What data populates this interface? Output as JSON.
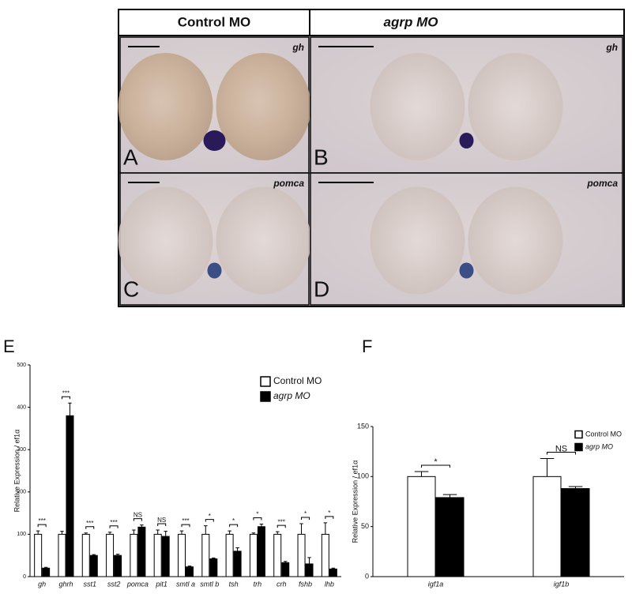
{
  "header": {
    "left": "Control MO",
    "right": "agrp MO"
  },
  "images": [
    {
      "letter": "A",
      "gene": "gh"
    },
    {
      "letter": "B",
      "gene": "gh"
    },
    {
      "letter": "C",
      "gene": "pomca"
    },
    {
      "letter": "D",
      "gene": "pomca"
    }
  ],
  "chart_data": [
    {
      "type": "bar",
      "panel_label": "E",
      "ylabel": "Relative Expression / ef1α",
      "categories": [
        "gh",
        "ghrh",
        "sst1",
        "sst2",
        "pomca",
        "pit1",
        "smtl a",
        "smtl b",
        "tsh",
        "trh",
        "crh",
        "fshb",
        "lhb"
      ],
      "series": [
        {
          "name": "Control MO",
          "color": "#ffffff",
          "values": [
            100,
            100,
            100,
            100,
            100,
            100,
            100,
            100,
            100,
            100,
            100,
            100,
            100
          ],
          "errors": [
            8,
            7,
            3,
            5,
            10,
            10,
            8,
            20,
            8,
            3,
            6,
            25,
            27
          ]
        },
        {
          "name": "agrp MO",
          "color": "#000000",
          "values": [
            20,
            380,
            50,
            50,
            117,
            95,
            23,
            42,
            60,
            118,
            33,
            30,
            18
          ],
          "errors": [
            2,
            30,
            2,
            3,
            5,
            12,
            2,
            2,
            8,
            6,
            3,
            15,
            2
          ]
        }
      ],
      "significance": [
        "***",
        "***",
        "***",
        "***",
        "NS",
        "NS",
        "***",
        "*",
        "*",
        "*",
        "***",
        "*",
        "*"
      ],
      "ylim": [
        0,
        500
      ],
      "yticks": [
        0,
        100,
        200,
        300,
        400,
        500
      ],
      "legend": "upper right"
    },
    {
      "type": "bar",
      "panel_label": "F",
      "ylabel": "Relative Expression / ef1α",
      "categories": [
        "igf1a",
        "igf1b"
      ],
      "series": [
        {
          "name": "Control MO",
          "color": "#ffffff",
          "values": [
            100,
            100
          ],
          "errors": [
            5,
            18
          ]
        },
        {
          "name": "agrp MO",
          "color": "#000000",
          "values": [
            79,
            88
          ],
          "errors": [
            3,
            2
          ]
        }
      ],
      "significance": [
        "*",
        "NS"
      ],
      "ylim": [
        0,
        150
      ],
      "yticks": [
        0,
        50,
        100,
        150
      ],
      "legend": "upper right"
    }
  ]
}
